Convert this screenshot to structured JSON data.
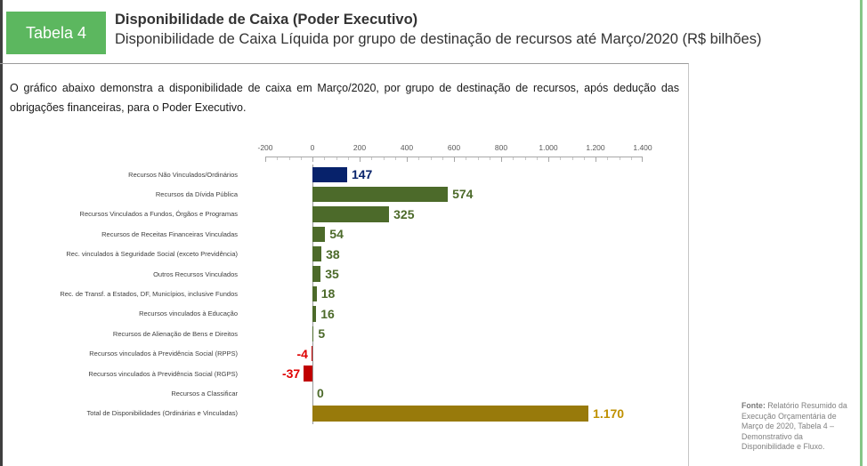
{
  "header": {
    "badge": "Tabela 4",
    "title": "Disponibilidade de Caixa (Poder Executivo)",
    "subtitle": "Disponibilidade de Caixa Líquida por grupo de destinação de recursos até Março/2020 (R$ bilhões)"
  },
  "intro": "O gráfico abaixo demonstra a disponibilidade de caixa em Março/2020, por grupo de destinação de recursos, após dedução das obrigações financeiras, para o Poder Executivo.",
  "source": {
    "label": "Fonte:",
    "text": " Relatório Resumido da Execução Orçamentária de Março de 2020, Tabela 4 – Demonstrativo da Disponibilidade e Fluxo."
  },
  "colors": {
    "badge_green": "#5CB75F",
    "page_edge_green": "#85C687",
    "left_rule": "#3F3F3F",
    "navy": "#07226B",
    "green": "#4C6A2A",
    "red_bar": "#C00000",
    "red_text": "#DF0000",
    "gold_bar": "#987A0B",
    "gold_text": "#BF9000",
    "axis_line": "#A6A6A6",
    "axis_label": "#595959"
  },
  "chart_data": {
    "type": "bar",
    "orientation": "horizontal",
    "unit": "R$ bilhões",
    "title": "Disponibilidade de Caixa Líquida por grupo de destinação de recursos até Março/2020 (R$ bilhões)",
    "x_axis": {
      "position": "top",
      "min": -200,
      "max": 1400,
      "tick_step": 200,
      "minor_tick_step": 50,
      "tick_labels": [
        "-200",
        "0",
        "200",
        "400",
        "600",
        "800",
        "1.000",
        "1.200",
        "1.400"
      ]
    },
    "categories": [
      "Recursos Não Vinculados/Ordinários",
      "Recursos da Dívida Pública",
      "Recursos Vinculados a Fundos, Órgãos e Programas",
      "Recursos de Receitas Financeiras Vinculadas",
      "Rec. vinculados à Seguridade Social (exceto Previdência)",
      "Outros Recursos Vinculados",
      "Rec. de Transf. a Estados, DF, Municípios, inclusive Fundos",
      "Recursos vinculados à Educação",
      "Recursos de Alienação de Bens e Direitos",
      "Recursos vinculados à Previdência Social (RPPS)",
      "Recursos vinculados à Previdência Social (RGPS)",
      "Recursos a Classificar",
      "Total de Disponibilidades (Ordinárias e Vinculadas)"
    ],
    "values": [
      147,
      574,
      325,
      54,
      38,
      35,
      18,
      16,
      5,
      -4,
      -37,
      0,
      1170
    ],
    "display_values": [
      "147",
      "574",
      "325",
      "54",
      "38",
      "35",
      "18",
      "16",
      "5",
      "-4",
      "-37",
      "0",
      "1.170"
    ],
    "bar_colors": [
      "navy",
      "green",
      "green",
      "green",
      "green",
      "green",
      "green",
      "green",
      "green",
      "red",
      "red",
      "green",
      "gold"
    ]
  }
}
